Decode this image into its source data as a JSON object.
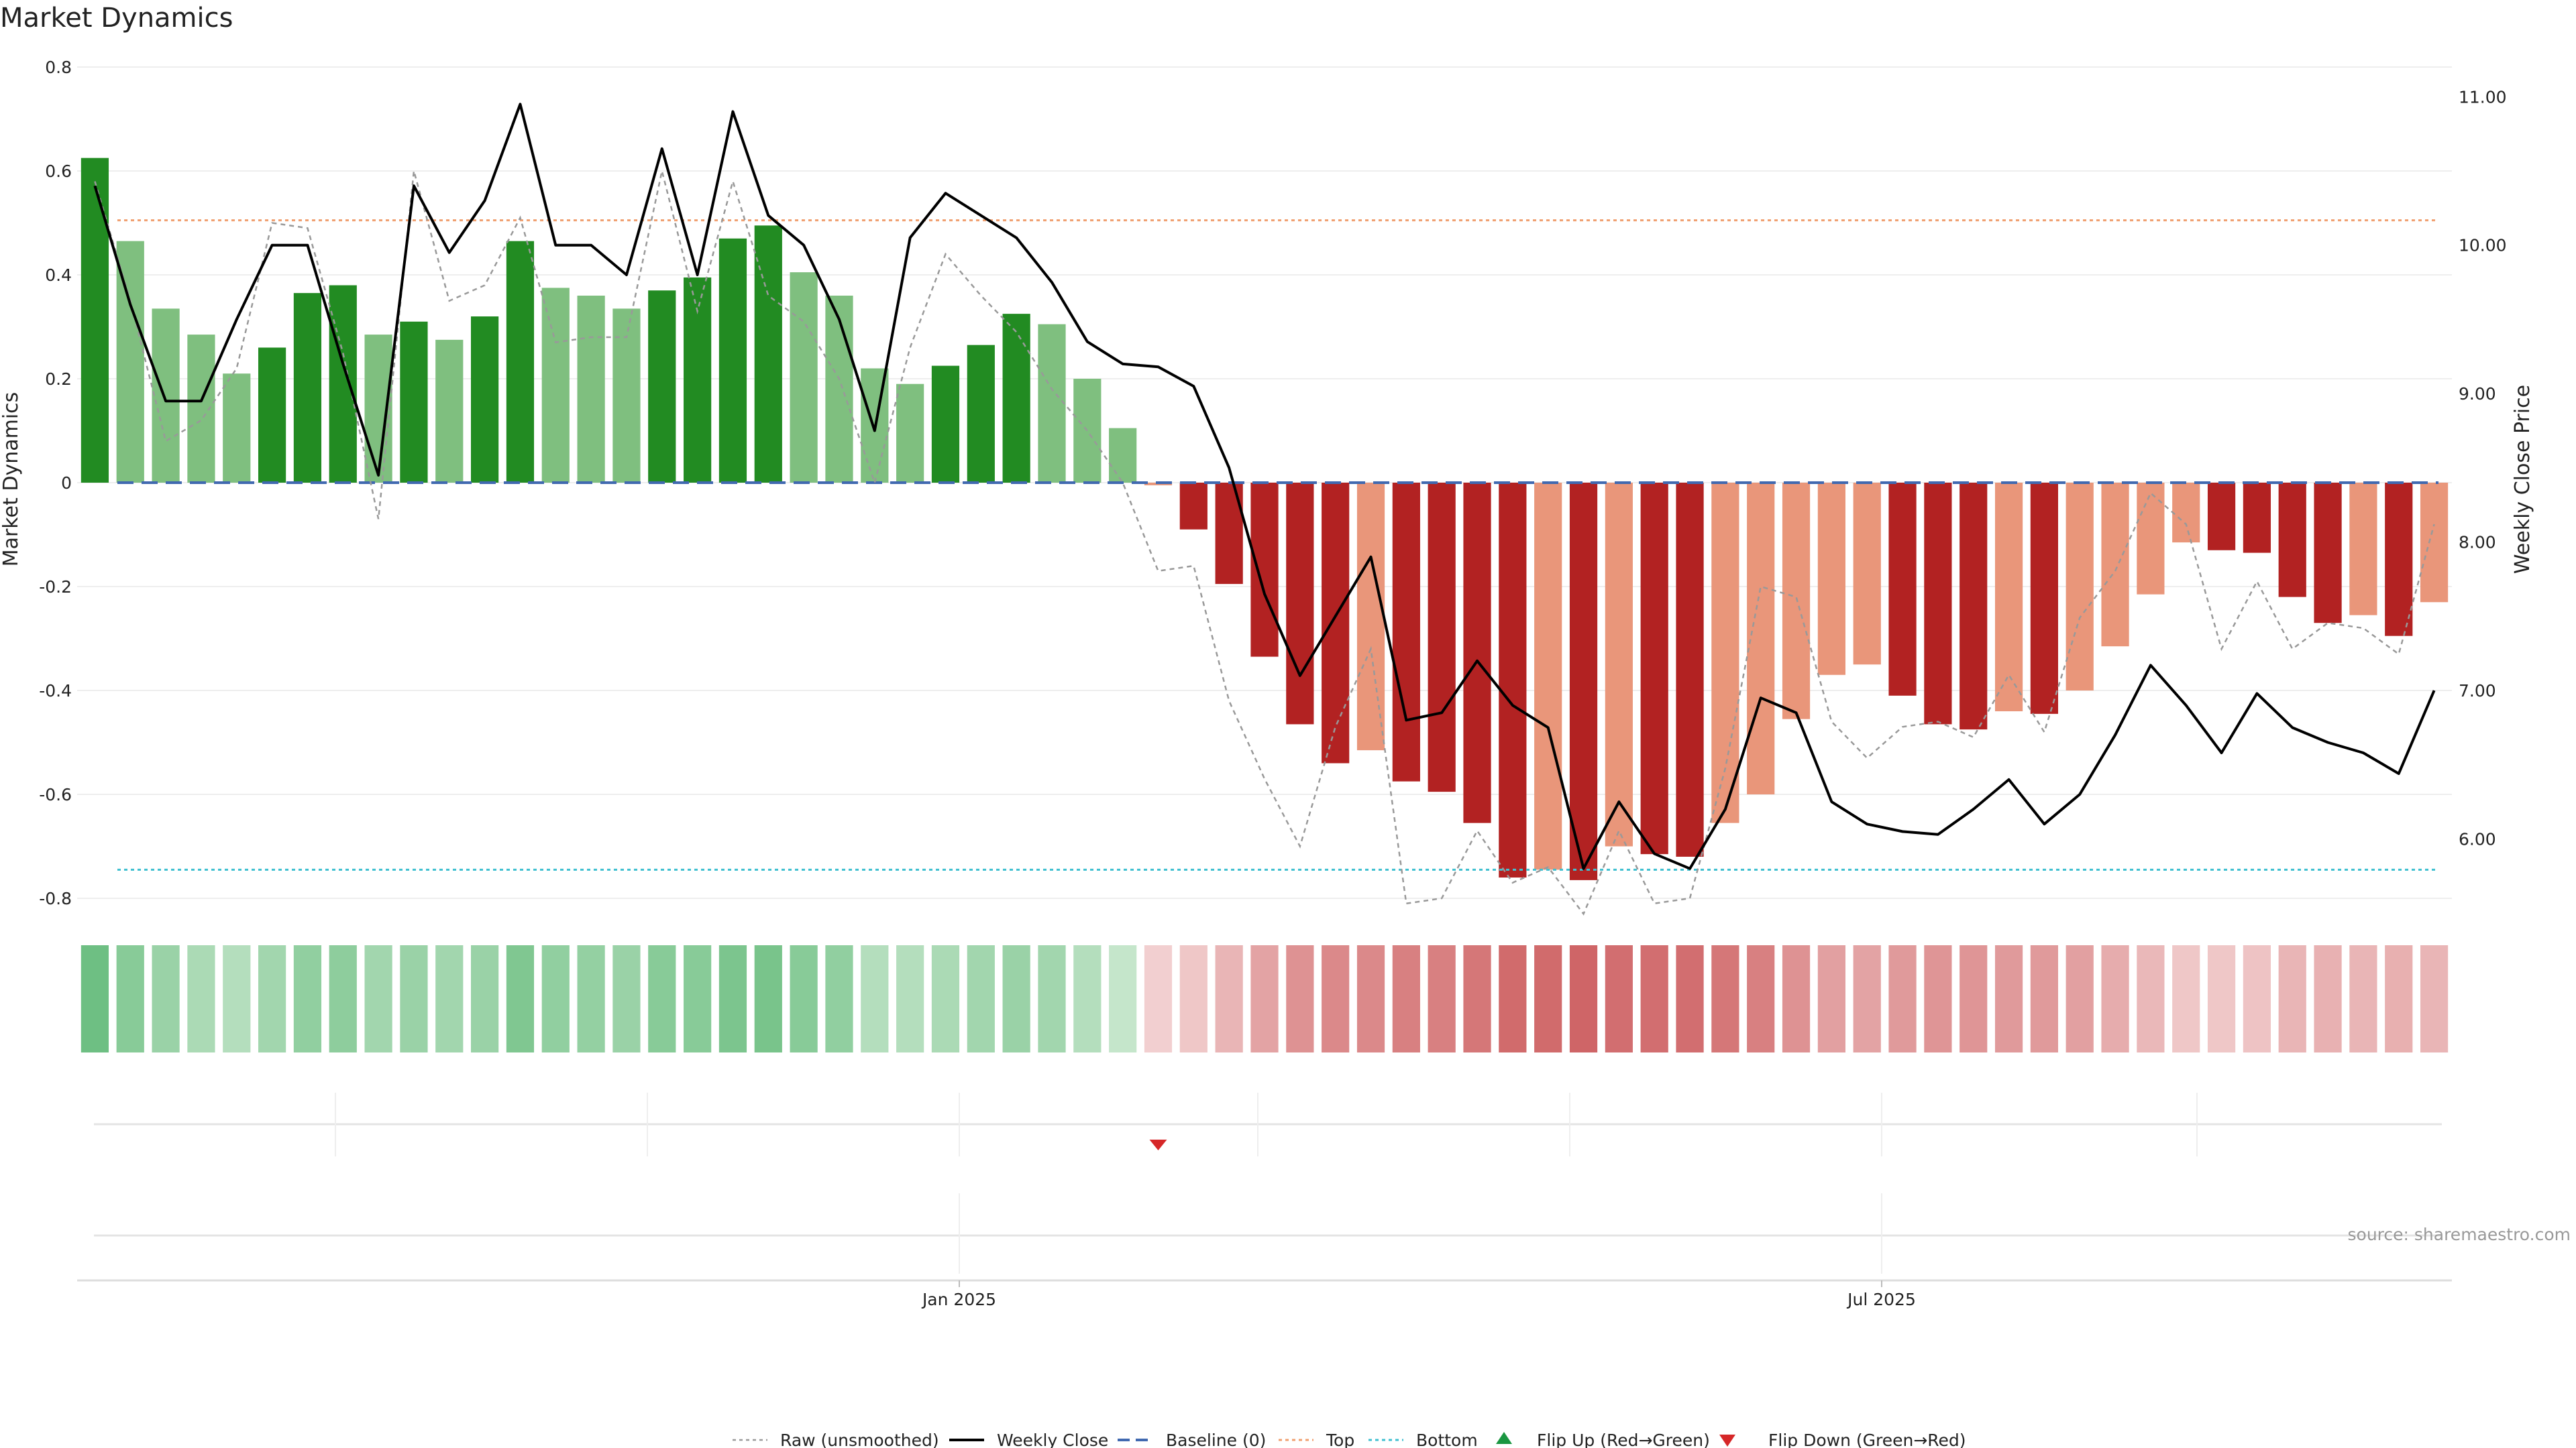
{
  "chart_data": {
    "type": "bar",
    "title": "Market Dynamics",
    "ylabel": "Market Dynamics",
    "y2label": "Weekly Close Price",
    "ylim": [
      -0.8,
      0.8
    ],
    "y2lim": [
      5.6,
      11.2
    ],
    "yticks": [
      "0.8",
      "0.6",
      "0.4",
      "0.2",
      "0",
      "-0.2",
      "-0.4",
      "-0.6",
      "-0.8"
    ],
    "y2ticks": [
      "11.00",
      "10.00",
      "9.00",
      "8.00",
      "7.00",
      "6.00"
    ],
    "xticks": [
      "Jan 2025",
      "Jul 2025"
    ],
    "grid": true,
    "legend_position": "bottom",
    "source": "source: sharemaestro.com",
    "colors": {
      "strong_up": "#228b22",
      "weak_up": "#7fbf7f",
      "strong_down": "#b22222",
      "weak_down": "#e9967a",
      "close": "#000000",
      "raw": "#999999",
      "baseline": "#4169b0",
      "top": "#f0a070",
      "bottom": "#40c0d0",
      "flip_up": "#1a9641",
      "flip_down": "#d62728"
    },
    "levels": {
      "baseline": 0,
      "top": 0.505,
      "bottom": -0.745
    },
    "bar_values": [
      0.625,
      0.465,
      0.335,
      0.285,
      0.21,
      0.26,
      0.365,
      0.38,
      0.285,
      0.31,
      0.275,
      0.32,
      0.465,
      0.375,
      0.36,
      0.335,
      0.37,
      0.395,
      0.47,
      0.495,
      0.405,
      0.36,
      0.22,
      0.19,
      0.225,
      0.265,
      0.325,
      0.305,
      0.2,
      0.105,
      -0.005,
      -0.09,
      -0.195,
      -0.335,
      -0.465,
      -0.54,
      -0.515,
      -0.575,
      -0.595,
      -0.655,
      -0.76,
      -0.745,
      -0.765,
      -0.7,
      -0.715,
      -0.72,
      -0.655,
      -0.6,
      -0.455,
      -0.37,
      -0.35,
      -0.41,
      -0.465,
      -0.475,
      -0.44,
      -0.445,
      -0.4,
      -0.315,
      -0.215,
      -0.115,
      -0.13,
      -0.135,
      -0.22,
      -0.27,
      -0.255,
      -0.295,
      -0.23
    ],
    "bar_strength": [
      "strong",
      "weak",
      "weak",
      "weak",
      "weak",
      "strong",
      "strong",
      "strong",
      "weak",
      "strong",
      "weak",
      "strong",
      "strong",
      "weak",
      "weak",
      "weak",
      "strong",
      "strong",
      "strong",
      "strong",
      "weak",
      "weak",
      "weak",
      "weak",
      "strong",
      "strong",
      "strong",
      "weak",
      "weak",
      "weak",
      "weak",
      "strong",
      "strong",
      "strong",
      "strong",
      "strong",
      "weak",
      "strong",
      "strong",
      "strong",
      "strong",
      "weak",
      "strong",
      "weak",
      "strong",
      "strong",
      "weak",
      "weak",
      "weak",
      "weak",
      "weak",
      "strong",
      "strong",
      "strong",
      "weak",
      "strong",
      "weak",
      "weak",
      "weak",
      "weak",
      "strong",
      "strong",
      "strong",
      "strong",
      "weak",
      "strong",
      "weak"
    ],
    "raw_values": [
      0.58,
      0.35,
      0.08,
      0.12,
      0.22,
      0.5,
      0.49,
      0.25,
      -0.07,
      0.6,
      0.35,
      0.38,
      0.51,
      0.27,
      0.28,
      0.28,
      0.6,
      0.33,
      0.58,
      0.36,
      0.31,
      0.2,
      0.0,
      0.26,
      0.44,
      0.36,
      0.29,
      0.18,
      0.1,
      0.0,
      -0.17,
      -0.16,
      -0.42,
      -0.57,
      -0.7,
      -0.47,
      -0.32,
      -0.81,
      -0.8,
      -0.67,
      -0.77,
      -0.74,
      -0.83,
      -0.67,
      -0.81,
      -0.8,
      -0.55,
      -0.2,
      -0.22,
      -0.46,
      -0.53,
      -0.47,
      -0.46,
      -0.49,
      -0.37,
      -0.48,
      -0.26,
      -0.17,
      -0.02,
      -0.08,
      -0.32,
      -0.19,
      -0.32,
      -0.27,
      -0.28,
      -0.33,
      -0.08
    ],
    "close_prices": [
      10.4,
      9.6,
      8.95,
      8.95,
      9.5,
      10.0,
      10.0,
      9.2,
      8.45,
      10.4,
      9.95,
      10.3,
      10.95,
      10.0,
      10.0,
      9.8,
      10.65,
      9.8,
      10.9,
      10.2,
      10.0,
      9.5,
      8.75,
      10.05,
      10.35,
      10.2,
      10.05,
      9.75,
      9.35,
      9.2,
      9.18,
      9.05,
      8.5,
      7.65,
      7.1,
      7.5,
      7.9,
      6.8,
      6.85,
      7.2,
      6.9,
      6.75,
      5.8,
      6.25,
      5.9,
      5.8,
      6.2,
      6.95,
      6.85,
      6.25,
      6.1,
      6.05,
      6.03,
      6.2,
      6.4,
      6.1,
      6.3,
      6.7,
      7.17,
      6.9,
      6.58,
      6.98,
      6.75,
      6.65,
      6.58,
      6.44,
      7.0
    ],
    "heat_strip": [
      0.7,
      0.55,
      0.45,
      0.35,
      0.3,
      0.4,
      0.5,
      0.52,
      0.4,
      0.45,
      0.4,
      0.45,
      0.6,
      0.5,
      0.48,
      0.45,
      0.55,
      0.55,
      0.62,
      0.64,
      0.55,
      0.5,
      0.3,
      0.3,
      0.35,
      0.4,
      0.45,
      0.4,
      0.3,
      0.2,
      -0.15,
      -0.2,
      -0.3,
      -0.4,
      -0.5,
      -0.55,
      -0.55,
      -0.6,
      -0.6,
      -0.65,
      -0.72,
      -0.72,
      -0.75,
      -0.7,
      -0.7,
      -0.7,
      -0.65,
      -0.6,
      -0.5,
      -0.42,
      -0.4,
      -0.45,
      -0.48,
      -0.48,
      -0.45,
      -0.45,
      -0.42,
      -0.35,
      -0.28,
      -0.2,
      -0.2,
      -0.22,
      -0.3,
      -0.32,
      -0.3,
      -0.33,
      -0.3
    ],
    "flip_down_index": 30,
    "legend": [
      "Raw (unsmoothed)",
      "Weekly Close",
      "Baseline (0)",
      "Top",
      "Bottom",
      "Flip Up (Red→Green)",
      "Flip Down (Green→Red)"
    ]
  }
}
